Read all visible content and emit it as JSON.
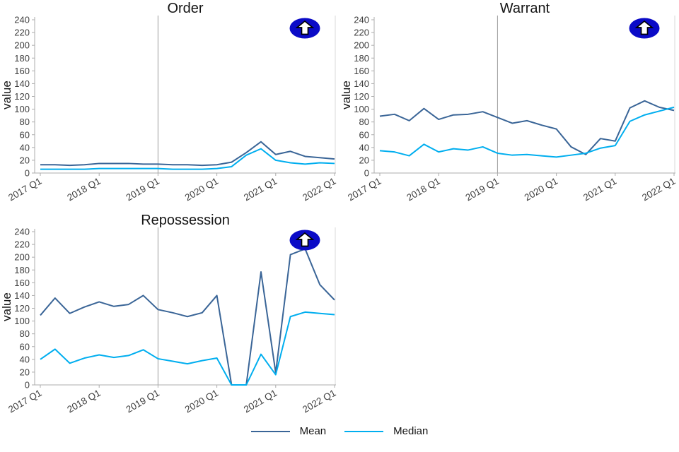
{
  "legend": {
    "items": [
      {
        "label": "Mean",
        "color": "#3A6597"
      },
      {
        "label": "Median",
        "color": "#00AEEF"
      }
    ]
  },
  "icon": {
    "name": "up-arrow-icon",
    "ellipse_color": "#0B0BC7",
    "arrow_color": "#FFFFFF",
    "outline_color": "#000000"
  },
  "chart_data": [
    {
      "type": "line",
      "title": "Order",
      "ylabel": "value",
      "ylim": [
        0,
        240
      ],
      "ytick_step": 20,
      "x": [
        "2017 Q1",
        "2017 Q2",
        "2017 Q3",
        "2017 Q4",
        "2018 Q1",
        "2018 Q2",
        "2018 Q3",
        "2018 Q4",
        "2019 Q1",
        "2019 Q2",
        "2019 Q3",
        "2019 Q4",
        "2020 Q1",
        "2020 Q2",
        "2020 Q3",
        "2020 Q4",
        "2021 Q1",
        "2021 Q2",
        "2021 Q3",
        "2021 Q4",
        "2022 Q1"
      ],
      "x_tick_labels": [
        "2017 Q1",
        "2018 Q1",
        "2019 Q1",
        "2020 Q1",
        "2021 Q1",
        "2022 Q1"
      ],
      "vline_x": "2019 Q1",
      "series": [
        {
          "name": "Mean",
          "color": "#3A6597",
          "values": [
            13,
            13,
            12,
            13,
            15,
            15,
            15,
            14,
            14,
            13,
            13,
            12,
            13,
            17,
            32,
            49,
            29,
            34,
            26,
            24,
            22
          ]
        },
        {
          "name": "Median",
          "color": "#00AEEF",
          "values": [
            6,
            6,
            6,
            6,
            7,
            7,
            7,
            7,
            7,
            6,
            6,
            6,
            7,
            10,
            28,
            38,
            20,
            16,
            14,
            16,
            15
          ]
        }
      ]
    },
    {
      "type": "line",
      "title": "Warrant",
      "ylabel": "value",
      "ylim": [
        0,
        240
      ],
      "ytick_step": 20,
      "x": [
        "2017 Q1",
        "2017 Q2",
        "2017 Q3",
        "2017 Q4",
        "2018 Q1",
        "2018 Q2",
        "2018 Q3",
        "2018 Q4",
        "2019 Q1",
        "2019 Q2",
        "2019 Q3",
        "2019 Q4",
        "2020 Q1",
        "2020 Q2",
        "2020 Q3",
        "2020 Q4",
        "2021 Q1",
        "2021 Q2",
        "2021 Q3",
        "2021 Q4",
        "2022 Q1"
      ],
      "x_tick_labels": [
        "2017 Q1",
        "2018 Q1",
        "2019 Q1",
        "2020 Q1",
        "2021 Q1",
        "2022 Q1"
      ],
      "vline_x": "2019 Q1",
      "series": [
        {
          "name": "Mean",
          "color": "#3A6597",
          "values": [
            89,
            92,
            82,
            101,
            84,
            91,
            92,
            96,
            87,
            78,
            82,
            75,
            69,
            41,
            29,
            54,
            50,
            102,
            113,
            103,
            98
          ]
        },
        {
          "name": "Median",
          "color": "#00AEEF",
          "values": [
            35,
            33,
            27,
            45,
            33,
            38,
            36,
            41,
            31,
            28,
            29,
            27,
            25,
            28,
            31,
            39,
            43,
            81,
            91,
            97,
            103
          ]
        }
      ]
    },
    {
      "type": "line",
      "title": "Repossession",
      "ylabel": "value",
      "ylim": [
        0,
        240
      ],
      "ytick_step": 20,
      "x": [
        "2017 Q1",
        "2017 Q2",
        "2017 Q3",
        "2017 Q4",
        "2018 Q1",
        "2018 Q2",
        "2018 Q3",
        "2018 Q4",
        "2019 Q1",
        "2019 Q2",
        "2019 Q3",
        "2019 Q4",
        "2020 Q1",
        "2020 Q2",
        "2020 Q3",
        "2020 Q4",
        "2021 Q1",
        "2021 Q2",
        "2021 Q3",
        "2021 Q4",
        "2022 Q1"
      ],
      "x_tick_labels": [
        "2017 Q1",
        "2018 Q1",
        "2019 Q1",
        "2020 Q1",
        "2021 Q1",
        "2022 Q1"
      ],
      "vline_x": "2019 Q1",
      "series": [
        {
          "name": "Mean",
          "color": "#3A6597",
          "values": [
            109,
            136,
            112,
            122,
            130,
            123,
            126,
            140,
            118,
            113,
            107,
            113,
            140,
            0,
            0,
            177,
            19,
            204,
            213,
            157,
            133
          ]
        },
        {
          "name": "Median",
          "color": "#00AEEF",
          "values": [
            40,
            56,
            34,
            42,
            47,
            43,
            46,
            55,
            41,
            37,
            33,
            38,
            42,
            0,
            0,
            48,
            16,
            107,
            114,
            112,
            110
          ]
        }
      ]
    }
  ]
}
